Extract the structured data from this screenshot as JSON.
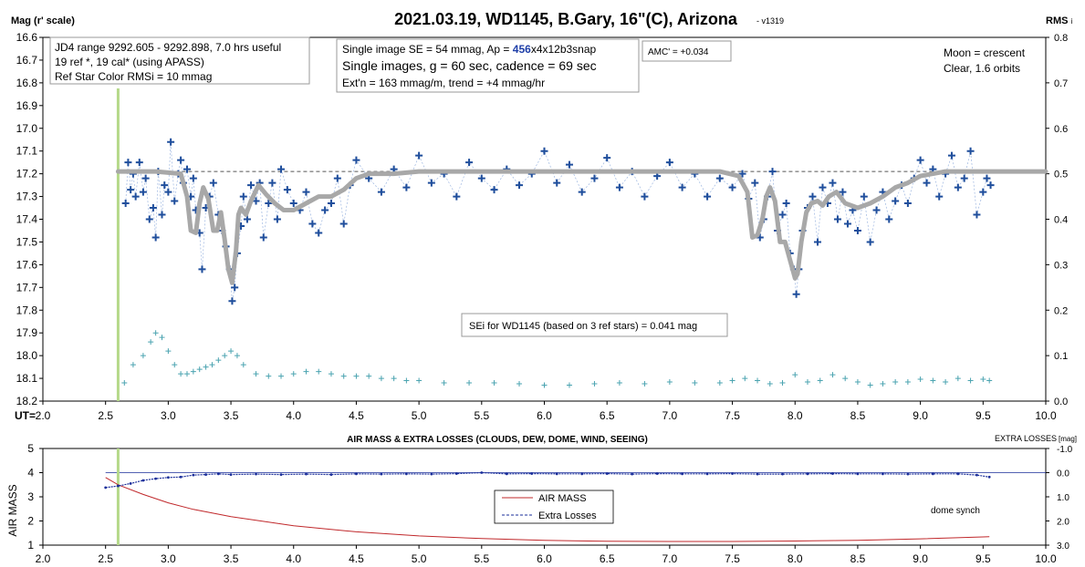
{
  "chart_data": [
    {
      "type": "scatter",
      "title": "2021.03.19, WD1145, B.Gary, 16\"(C), Arizona",
      "version": "- v1319",
      "ylabel": "Mag (r' scale)",
      "y2label": "RMS",
      "y2label_sub": "i",
      "xlabel_prefix": "UT=",
      "xlim": [
        2.0,
        10.0
      ],
      "ylim": [
        16.6,
        18.2
      ],
      "y_inverted": true,
      "y2lim": [
        0.0,
        0.8
      ],
      "x_ticks": [
        "2.0",
        "2.5",
        "3.0",
        "3.5",
        "4.0",
        "4.5",
        "5.0",
        "5.5",
        "6.0",
        "6.5",
        "7.0",
        "7.5",
        "8.0",
        "8.5",
        "9.0",
        "9.5",
        "10.0"
      ],
      "y_ticks": [
        "16.6",
        "16.7",
        "16.8",
        "16.9",
        "17.0",
        "17.1",
        "17.2",
        "17.3",
        "17.4",
        "17.5",
        "17.6",
        "17.7",
        "17.8",
        "17.9",
        "18.0",
        "18.1",
        "18.2"
      ],
      "y2_ticks": [
        "0.8",
        "0.7",
        "0.6",
        "0.5",
        "0.4",
        "0.3",
        "0.2",
        "0.1",
        "0.0"
      ],
      "annotations": {
        "box1": [
          "JD4 range 9292.605 - 9292.898, 7.0 hrs useful",
          "19 ref *, 19 cal* (using APASS)",
          "Ref Star Color RMSi = 10 mmag"
        ],
        "box2_line1_pre": "Single image SE = 54 mmag, Ap = ",
        "box2_line1_hl": "456",
        "box2_line1_post": "x4x12b3snap",
        "box2_line2": "Single images, g = 60 sec, cadence = 69 sec",
        "box2_line3": "Ext'n = 163 mmag/m, trend = +4 mmag/hr",
        "amc": "AMC' = +0.034",
        "moon": [
          "Moon = crescent",
          "Clear, 1.6 orbits"
        ],
        "sei": "SEi for WD1145 (based on 3 ref stars) = 0.041 mag"
      },
      "reference_level": 17.19,
      "start_marker_x": 2.6,
      "series": [
        {
          "name": "",
          "style": "cross",
          "color": "#1f4e9c",
          "x": [
            2.66,
            2.68,
            2.7,
            2.72,
            2.74,
            2.77,
            2.8,
            2.82,
            2.85,
            2.88,
            2.9,
            2.92,
            2.95,
            2.97,
            3.0,
            3.02,
            3.05,
            3.08,
            3.1,
            3.12,
            3.15,
            3.18,
            3.2,
            3.22,
            3.25,
            3.27,
            3.3,
            3.33,
            3.36,
            3.4,
            3.43,
            3.46,
            3.49,
            3.51,
            3.53,
            3.55,
            3.58,
            3.6,
            3.63,
            3.66,
            3.7,
            3.73,
            3.76,
            3.8,
            3.83,
            3.87,
            3.9,
            3.95,
            4.0,
            4.05,
            4.1,
            4.15,
            4.2,
            4.25,
            4.3,
            4.35,
            4.4,
            4.45,
            4.5,
            4.6,
            4.7,
            4.8,
            4.9,
            5.0,
            5.1,
            5.2,
            5.3,
            5.4,
            5.5,
            5.6,
            5.7,
            5.8,
            5.9,
            6.0,
            6.1,
            6.2,
            6.3,
            6.4,
            6.5,
            6.6,
            6.7,
            6.8,
            6.9,
            7.0,
            7.1,
            7.2,
            7.3,
            7.4,
            7.5,
            7.58,
            7.63,
            7.68,
            7.72,
            7.75,
            7.78,
            7.82,
            7.86,
            7.9,
            7.93,
            7.96,
            7.99,
            8.01,
            8.03,
            8.06,
            8.1,
            8.14,
            8.18,
            8.22,
            8.26,
            8.3,
            8.34,
            8.38,
            8.42,
            8.46,
            8.5,
            8.55,
            8.6,
            8.65,
            8.7,
            8.75,
            8.8,
            8.85,
            8.9,
            8.95,
            9.0,
            9.05,
            9.1,
            9.15,
            9.2,
            9.25,
            9.3,
            9.35,
            9.4,
            9.45,
            9.5,
            9.53,
            9.56
          ],
          "y": [
            17.33,
            17.15,
            17.27,
            17.2,
            17.3,
            17.15,
            17.28,
            17.22,
            17.4,
            17.35,
            17.48,
            17.19,
            17.38,
            17.25,
            17.28,
            17.06,
            17.32,
            17.2,
            17.14,
            17.24,
            17.18,
            17.3,
            17.22,
            17.36,
            17.46,
            17.62,
            17.35,
            17.3,
            17.24,
            17.38,
            17.45,
            17.52,
            17.62,
            17.76,
            17.7,
            17.55,
            17.43,
            17.3,
            17.4,
            17.25,
            17.32,
            17.24,
            17.48,
            17.33,
            17.24,
            17.4,
            17.18,
            17.27,
            17.33,
            17.36,
            17.28,
            17.42,
            17.46,
            17.36,
            17.33,
            17.22,
            17.42,
            17.25,
            17.14,
            17.22,
            17.28,
            17.18,
            17.26,
            17.12,
            17.24,
            17.2,
            17.3,
            17.15,
            17.22,
            17.27,
            17.18,
            17.25,
            17.2,
            17.1,
            17.24,
            17.16,
            17.28,
            17.22,
            17.13,
            17.26,
            17.19,
            17.3,
            17.21,
            17.15,
            17.26,
            17.2,
            17.3,
            17.22,
            17.26,
            17.2,
            17.31,
            17.24,
            17.48,
            17.4,
            17.3,
            17.19,
            17.45,
            17.38,
            17.33,
            17.55,
            17.62,
            17.73,
            17.62,
            17.45,
            17.35,
            17.3,
            17.5,
            17.26,
            17.33,
            17.24,
            17.4,
            17.28,
            17.42,
            17.36,
            17.45,
            17.3,
            17.5,
            17.36,
            17.28,
            17.4,
            17.32,
            17.25,
            17.33,
            17.22,
            17.14,
            17.24,
            17.18,
            17.3,
            17.2,
            17.12,
            17.26,
            17.22,
            17.1,
            17.38,
            17.28,
            17.22,
            17.25
          ]
        },
        {
          "name": "",
          "style": "line",
          "color": "#a8a8a8",
          "x": [
            2.6,
            2.9,
            3.1,
            3.15,
            3.18,
            3.22,
            3.25,
            3.28,
            3.32,
            3.36,
            3.39,
            3.42,
            3.45,
            3.48,
            3.51,
            3.54,
            3.56,
            3.58,
            3.62,
            3.66,
            3.72,
            3.78,
            3.85,
            3.92,
            4.0,
            4.1,
            4.2,
            4.3,
            4.4,
            4.5,
            4.6,
            4.8,
            5.0,
            5.5,
            6.0,
            6.5,
            7.0,
            7.4,
            7.55,
            7.62,
            7.66,
            7.7,
            7.74,
            7.77,
            7.8,
            7.84,
            7.88,
            7.92,
            7.96,
            8.0,
            8.02,
            8.05,
            8.09,
            8.13,
            8.18,
            8.22,
            8.27,
            8.33,
            8.4,
            8.5,
            8.6,
            8.7,
            8.8,
            8.9,
            9.0,
            9.1,
            9.2,
            9.3,
            9.5,
            9.8,
            10.0
          ],
          "y": [
            17.19,
            17.19,
            17.2,
            17.3,
            17.45,
            17.46,
            17.33,
            17.26,
            17.31,
            17.45,
            17.45,
            17.37,
            17.49,
            17.62,
            17.68,
            17.54,
            17.38,
            17.35,
            17.38,
            17.32,
            17.25,
            17.29,
            17.33,
            17.36,
            17.36,
            17.33,
            17.3,
            17.3,
            17.27,
            17.22,
            17.2,
            17.2,
            17.19,
            17.19,
            17.19,
            17.19,
            17.19,
            17.19,
            17.21,
            17.28,
            17.48,
            17.47,
            17.4,
            17.3,
            17.26,
            17.32,
            17.5,
            17.5,
            17.58,
            17.66,
            17.64,
            17.5,
            17.37,
            17.33,
            17.32,
            17.34,
            17.3,
            17.28,
            17.33,
            17.35,
            17.33,
            17.3,
            17.26,
            17.24,
            17.21,
            17.2,
            17.19,
            17.19,
            17.19,
            17.19,
            17.19
          ]
        },
        {
          "name": "",
          "style": "plus",
          "color": "#4aa3b0",
          "axis": "RMS",
          "x": [
            2.65,
            2.72,
            2.8,
            2.86,
            2.9,
            2.95,
            3.0,
            3.05,
            3.1,
            3.15,
            3.2,
            3.25,
            3.3,
            3.35,
            3.4,
            3.45,
            3.5,
            3.55,
            3.6,
            3.7,
            3.8,
            3.9,
            4.0,
            4.1,
            4.2,
            4.3,
            4.4,
            4.5,
            4.6,
            4.7,
            4.8,
            4.9,
            5.0,
            5.2,
            5.4,
            5.6,
            5.8,
            6.0,
            6.2,
            6.4,
            6.6,
            6.8,
            7.0,
            7.2,
            7.4,
            7.5,
            7.6,
            7.7,
            7.8,
            7.9,
            8.0,
            8.1,
            8.2,
            8.3,
            8.4,
            8.5,
            8.6,
            8.7,
            8.8,
            8.9,
            9.0,
            9.1,
            9.2,
            9.3,
            9.4,
            9.5,
            9.55
          ],
          "y": [
            0.04,
            0.08,
            0.1,
            0.13,
            0.15,
            0.14,
            0.11,
            0.08,
            0.06,
            0.06,
            0.065,
            0.07,
            0.075,
            0.08,
            0.09,
            0.1,
            0.11,
            0.1,
            0.08,
            0.06,
            0.055,
            0.055,
            0.06,
            0.065,
            0.065,
            0.06,
            0.055,
            0.055,
            0.055,
            0.05,
            0.05,
            0.045,
            0.045,
            0.04,
            0.04,
            0.04,
            0.038,
            0.035,
            0.035,
            0.038,
            0.04,
            0.038,
            0.042,
            0.04,
            0.04,
            0.045,
            0.05,
            0.045,
            0.038,
            0.04,
            0.058,
            0.042,
            0.045,
            0.058,
            0.05,
            0.042,
            0.035,
            0.038,
            0.042,
            0.042,
            0.048,
            0.045,
            0.042,
            0.05,
            0.045,
            0.048,
            0.045
          ]
        }
      ]
    },
    {
      "type": "line",
      "title": "AIR MASS & EXTRA LOSSES (CLOUDS, DEW, DOME, WIND, SEEING)",
      "ylabel": "AIR MASS",
      "y2label": "EXTRA LOSSES [mag]",
      "y2label_main": "EXTRA LOSSES",
      "y2label_unit": "[mag]",
      "xlim": [
        2.0,
        10.0
      ],
      "ylim": [
        1,
        5
      ],
      "y2lim": [
        -1.0,
        3.0
      ],
      "y2_inverted": true,
      "x_ticks": [
        "2.0",
        "2.5",
        "3.0",
        "3.5",
        "4.0",
        "4.5",
        "5.0",
        "5.5",
        "6.0",
        "6.5",
        "7.0",
        "7.5",
        "8.0",
        "8.5",
        "9.0",
        "9.5",
        "10.0"
      ],
      "y_ticks": [
        "5",
        "4",
        "3",
        "2",
        "1"
      ],
      "y2_ticks": [
        "-1.0",
        "0.0",
        "1.0",
        "2.0",
        "3.0"
      ],
      "note": "dome synch",
      "start_marker_x": 2.6,
      "legend": [
        "AIR MASS",
        "Extra Losses"
      ],
      "series": [
        {
          "name": "AIR MASS",
          "color": "#c0282b",
          "x": [
            2.5,
            2.6,
            2.8,
            3.0,
            3.2,
            3.5,
            4.0,
            4.5,
            5.0,
            5.5,
            6.0,
            6.5,
            7.0,
            7.5,
            8.0,
            8.5,
            9.0,
            9.5,
            9.55
          ],
          "y": [
            3.8,
            3.5,
            3.1,
            2.75,
            2.48,
            2.18,
            1.8,
            1.55,
            1.38,
            1.27,
            1.2,
            1.16,
            1.15,
            1.15,
            1.17,
            1.2,
            1.26,
            1.34,
            1.35
          ]
        },
        {
          "name": "Extra Losses",
          "color": "#1a2e9a",
          "x": [
            2.5,
            2.6,
            2.7,
            2.8,
            2.9,
            3.0,
            3.1,
            3.2,
            3.3,
            3.4,
            3.5,
            3.7,
            3.9,
            4.1,
            4.3,
            4.5,
            4.7,
            4.9,
            5.1,
            5.3,
            5.5,
            5.7,
            5.9,
            6.1,
            6.3,
            6.5,
            6.7,
            6.9,
            7.1,
            7.3,
            7.5,
            7.7,
            7.9,
            8.1,
            8.3,
            8.5,
            8.7,
            8.9,
            9.1,
            9.3,
            9.45,
            9.55
          ],
          "y": [
            0.62,
            0.55,
            0.45,
            0.32,
            0.25,
            0.2,
            0.18,
            0.1,
            0.08,
            0.05,
            0.08,
            0.06,
            0.08,
            0.06,
            0.08,
            0.05,
            0.06,
            0.05,
            0.06,
            0.04,
            0.0,
            0.05,
            0.04,
            0.05,
            0.05,
            0.04,
            0.06,
            0.04,
            0.05,
            0.05,
            0.04,
            0.06,
            0.06,
            0.05,
            0.04,
            0.05,
            0.05,
            0.06,
            0.05,
            0.05,
            0.1,
            0.18
          ]
        }
      ]
    }
  ]
}
